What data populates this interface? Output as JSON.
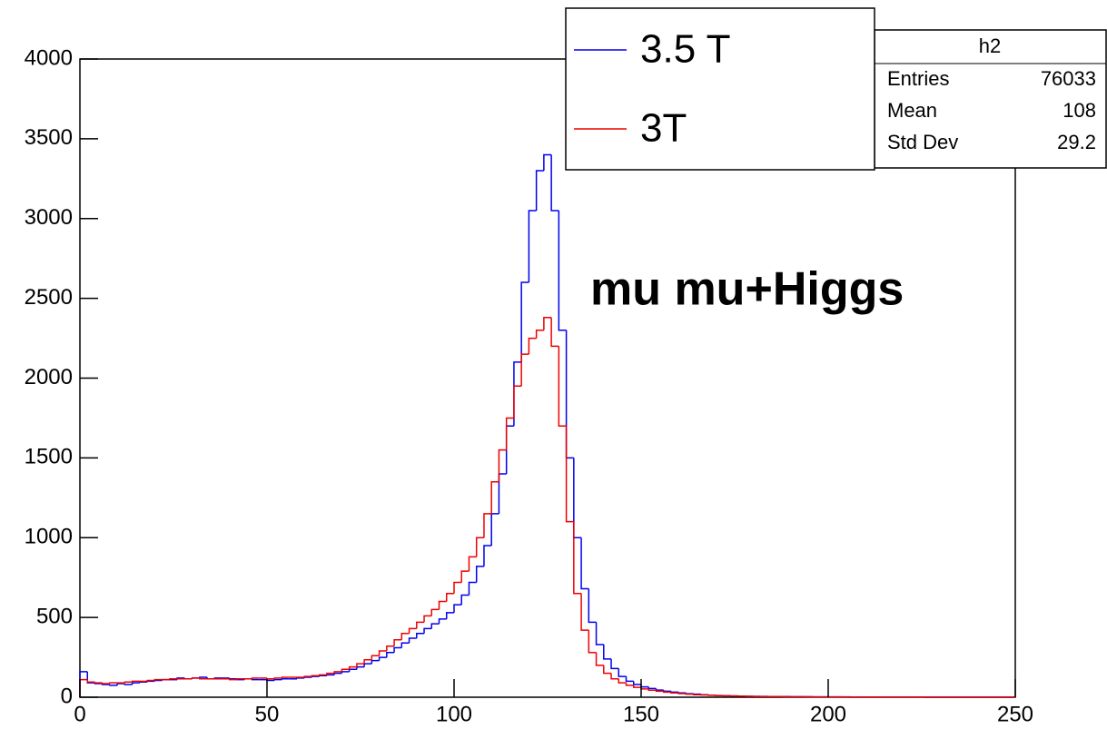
{
  "chart_data": {
    "type": "histogram",
    "xlim": [
      0,
      250
    ],
    "ylim": [
      0,
      4000
    ],
    "xticks": [
      0,
      50,
      100,
      150,
      200,
      250
    ],
    "yticks": [
      0,
      500,
      1000,
      1500,
      2000,
      2500,
      3000,
      3500,
      4000
    ],
    "bins": [
      0,
      2,
      4,
      6,
      8,
      10,
      12,
      14,
      16,
      18,
      20,
      22,
      24,
      26,
      28,
      30,
      32,
      34,
      36,
      38,
      40,
      42,
      44,
      46,
      48,
      50,
      52,
      54,
      56,
      58,
      60,
      62,
      64,
      66,
      68,
      70,
      72,
      74,
      76,
      78,
      80,
      82,
      84,
      86,
      88,
      90,
      92,
      94,
      96,
      98,
      100,
      102,
      104,
      106,
      108,
      110,
      112,
      114,
      116,
      118,
      120,
      122,
      124,
      126,
      128,
      130,
      132,
      134,
      136,
      138,
      140,
      142,
      144,
      146,
      148,
      150,
      152,
      154,
      156,
      158,
      160,
      162,
      164,
      166,
      168,
      170,
      172,
      174,
      176,
      178,
      180,
      182,
      184,
      186,
      188,
      190,
      192,
      194,
      196,
      198,
      200,
      202,
      204,
      206,
      208,
      210,
      212,
      214,
      216,
      218,
      220,
      222,
      224,
      226,
      228,
      230,
      232,
      234,
      236,
      238,
      240,
      242,
      244,
      246,
      248,
      250
    ],
    "series": [
      {
        "name": "3.5 T",
        "color": "#0000ee",
        "values": [
          160,
          90,
          85,
          80,
          75,
          85,
          80,
          90,
          95,
          100,
          105,
          110,
          110,
          120,
          115,
          120,
          125,
          115,
          120,
          120,
          115,
          110,
          115,
          110,
          110,
          105,
          110,
          115,
          115,
          120,
          125,
          130,
          135,
          140,
          150,
          160,
          175,
          190,
          210,
          230,
          250,
          280,
          310,
          340,
          370,
          400,
          430,
          460,
          490,
          530,
          580,
          640,
          720,
          820,
          950,
          1150,
          1400,
          1700,
          2100,
          2600,
          3050,
          3300,
          3400,
          3050,
          2300,
          1500,
          1000,
          680,
          470,
          330,
          240,
          180,
          130,
          100,
          80,
          65,
          55,
          45,
          38,
          32,
          27,
          22,
          19,
          16,
          13,
          11,
          9,
          8,
          7,
          6,
          5,
          5,
          4,
          4,
          4,
          3,
          3,
          3,
          2,
          2,
          2,
          2,
          2,
          1,
          1,
          1,
          1,
          1,
          1,
          1,
          1,
          1,
          1,
          0,
          0,
          0,
          0,
          0,
          0,
          0,
          0,
          0,
          0,
          0,
          0
        ]
      },
      {
        "name": "3T",
        "color": "#ee0000",
        "values": [
          110,
          95,
          90,
          85,
          90,
          90,
          95,
          100,
          100,
          105,
          110,
          110,
          115,
          115,
          115,
          120,
          115,
          115,
          115,
          115,
          110,
          115,
          115,
          120,
          120,
          115,
          120,
          125,
          125,
          125,
          130,
          135,
          140,
          150,
          160,
          175,
          190,
          210,
          235,
          260,
          290,
          320,
          360,
          400,
          430,
          470,
          510,
          550,
          600,
          650,
          720,
          790,
          880,
          1000,
          1150,
          1350,
          1550,
          1750,
          1950,
          2150,
          2250,
          2300,
          2380,
          2200,
          1700,
          1100,
          650,
          420,
          280,
          200,
          150,
          115,
          90,
          75,
          62,
          52,
          44,
          38,
          32,
          27,
          23,
          19,
          16,
          14,
          12,
          10,
          9,
          8,
          7,
          6,
          5,
          4,
          4,
          4,
          3,
          3,
          3,
          2,
          2,
          2,
          2,
          2,
          1,
          1,
          1,
          1,
          1,
          1,
          1,
          1,
          1,
          1,
          1,
          0,
          0,
          0,
          0,
          0,
          0,
          0,
          0,
          0,
          0,
          0,
          0
        ]
      }
    ],
    "annotation": "mu mu+Higgs",
    "stats_box": {
      "title": "h2",
      "rows": [
        {
          "label": "Entries",
          "value": "76033"
        },
        {
          "label": "Mean",
          "value": "108"
        },
        {
          "label": "Std Dev",
          "value": "29.2"
        }
      ]
    }
  }
}
